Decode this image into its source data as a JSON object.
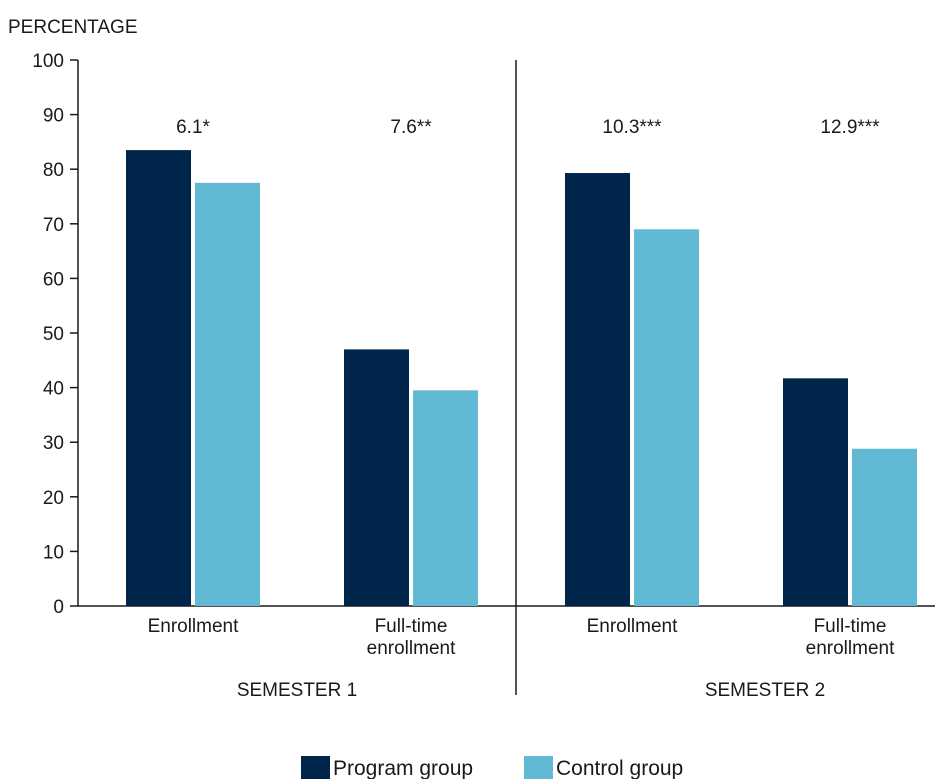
{
  "chart_data": {
    "type": "bar",
    "ylabel": "PERCENTAGE",
    "ylim": [
      0,
      100
    ],
    "yticks": [
      "0",
      "10",
      "20",
      "30",
      "40",
      "50",
      "60",
      "70",
      "80",
      "90",
      "100"
    ],
    "groups": [
      {
        "label": "SEMESTER 1",
        "categories": [
          "Enrollment",
          "Full-time enrollment"
        ],
        "category_lines": [
          [
            "Enrollment"
          ],
          [
            "Full-time",
            "enrollment"
          ]
        ],
        "annotations": [
          "6.1*",
          "7.6**"
        ]
      },
      {
        "label": "SEMESTER 2",
        "categories": [
          "Enrollment",
          "Full-time enrollment"
        ],
        "category_lines": [
          [
            "Enrollment"
          ],
          [
            "Full-time",
            "enrollment"
          ]
        ],
        "annotations": [
          "10.3***",
          "12.9***"
        ]
      }
    ],
    "series": [
      {
        "name": "Program group",
        "color": "#00254a",
        "values": [
          83.5,
          47.0,
          79.3,
          41.7
        ]
      },
      {
        "name": "Control group",
        "color": "#62b9d3",
        "values": [
          77.5,
          39.5,
          69.0,
          28.8
        ]
      }
    ],
    "grid": false,
    "legend": "bottom-center"
  }
}
